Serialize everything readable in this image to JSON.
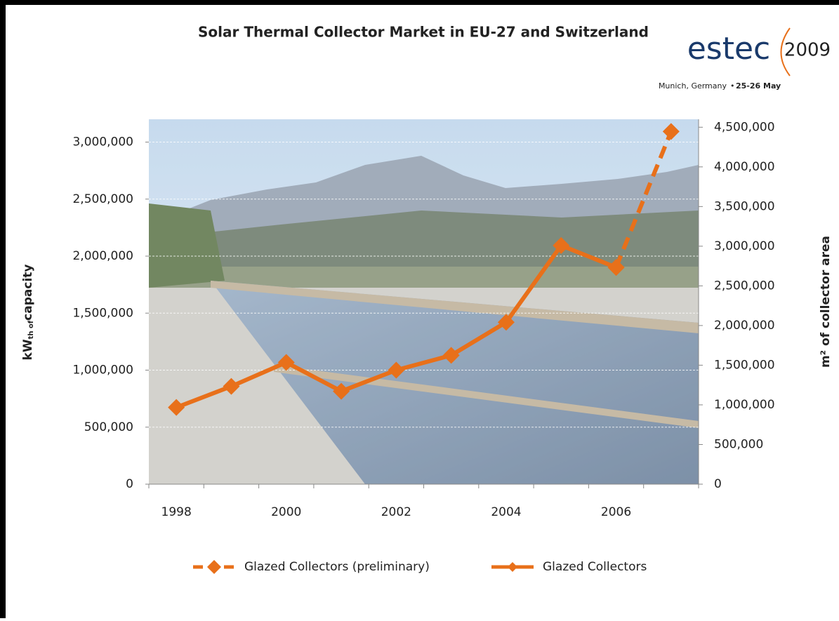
{
  "chart_data": {
    "type": "line",
    "title": "Solar Thermal Collector Market in  EU-27 and Switzerland",
    "logo": {
      "name": "estec",
      "year": "2009",
      "place": "Munich, Germany",
      "dates": "25-26 May"
    },
    "y_label": {
      "main": "kW",
      "sub": "th of",
      "rest": "capacity"
    },
    "y2_label": "m² of collector area",
    "categories": [
      "1998",
      null,
      "2000",
      null,
      "2002",
      null,
      "2004",
      null,
      "2006",
      null
    ],
    "series": [
      {
        "name": "Glazed Collectors (preliminary)",
        "color": "#e8701a",
        "dashed": true,
        "values": [
          null,
          null,
          null,
          null,
          null,
          null,
          null,
          null,
          1901000,
          3093000
        ]
      },
      {
        "name": "Glazed Collectors",
        "color": "#e8701a",
        "dashed": false,
        "values": [
          673000,
          858000,
          1068000,
          815000,
          1000000,
          1130000,
          1420000,
          2093000,
          1901000,
          null
        ]
      }
    ],
    "ylim": [
      0,
      3200000
    ],
    "yticks": [
      0,
      {
        "value": 500000,
        "label": "500,000"
      },
      {
        "value": 1000000,
        "label": "1,000,000"
      },
      {
        "value": 1500000,
        "label": "1,500,000"
      },
      {
        "value": 2000000,
        "label": "2,000,000"
      },
      {
        "value": 2500000,
        "label": "2,500,000"
      },
      {
        "value": 3000000,
        "label": "3,000,000"
      }
    ],
    "y2lim": [
      0,
      4600000
    ],
    "y2ticks": [
      0,
      {
        "value": 500000,
        "label": "500,000"
      },
      {
        "value": 1000000,
        "label": "1,000,000"
      },
      {
        "value": 1500000,
        "label": "1,500,000"
      },
      {
        "value": 2000000,
        "label": "2,000,000"
      },
      {
        "value": 2500000,
        "label": "2,500,000"
      },
      {
        "value": 3000000,
        "label": "3,000,000"
      },
      {
        "value": 3500000,
        "label": "3,500,000"
      },
      {
        "value": 4000000,
        "label": "4,000,000"
      },
      {
        "value": 4500000,
        "label": "4,500,000"
      }
    ],
    "grid": true
  }
}
